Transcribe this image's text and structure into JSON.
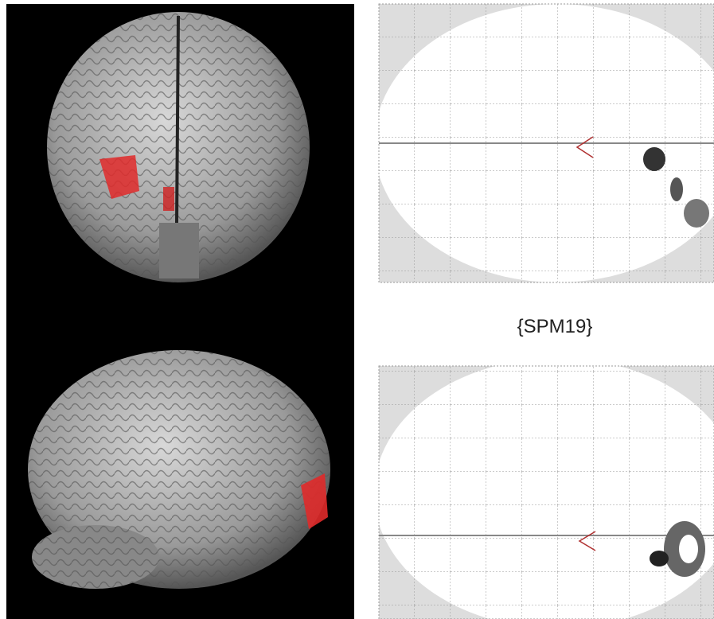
{
  "figure": {
    "panel_label": "{SPM19}"
  }
}
